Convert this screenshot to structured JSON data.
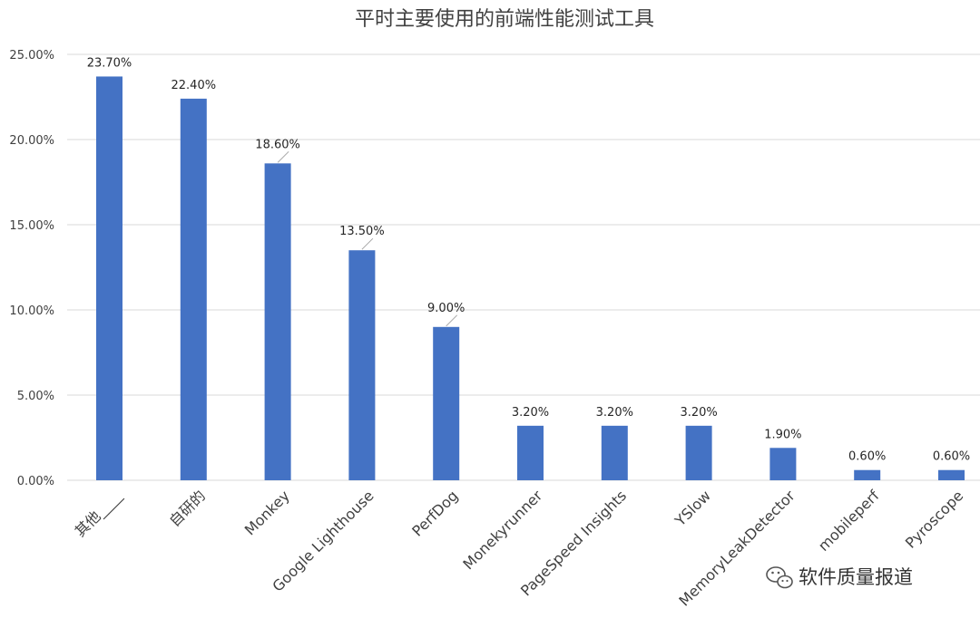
{
  "chart_data": {
    "type": "bar",
    "title": "平时主要使用的前端性能测试工具",
    "categories": [
      "其他____",
      "自研的",
      "Monkey",
      "Google Lighthouse",
      "PerfDog",
      "Monekyrunner",
      "PageSpeed Insights",
      "YSlow",
      "MemoryLeakDetector",
      "mobileperf",
      "Pyroscope"
    ],
    "values": [
      23.7,
      22.4,
      18.6,
      13.5,
      9.0,
      3.2,
      3.2,
      3.2,
      1.9,
      0.6,
      0.6
    ],
    "data_labels": [
      "23.70%",
      "22.40%",
      "18.60%",
      "13.50%",
      "9.00%",
      "3.20%",
      "3.20%",
      "3.20%",
      "1.90%",
      "0.60%",
      "0.60%"
    ],
    "ylim": [
      0,
      25
    ],
    "yticks": [
      "0.00%",
      "5.00%",
      "10.00%",
      "15.00%",
      "20.00%",
      "25.00%"
    ],
    "grid": true,
    "color": "#4472c4"
  },
  "watermark": {
    "icon": "wechat-icon",
    "text": "软件质量报道"
  }
}
